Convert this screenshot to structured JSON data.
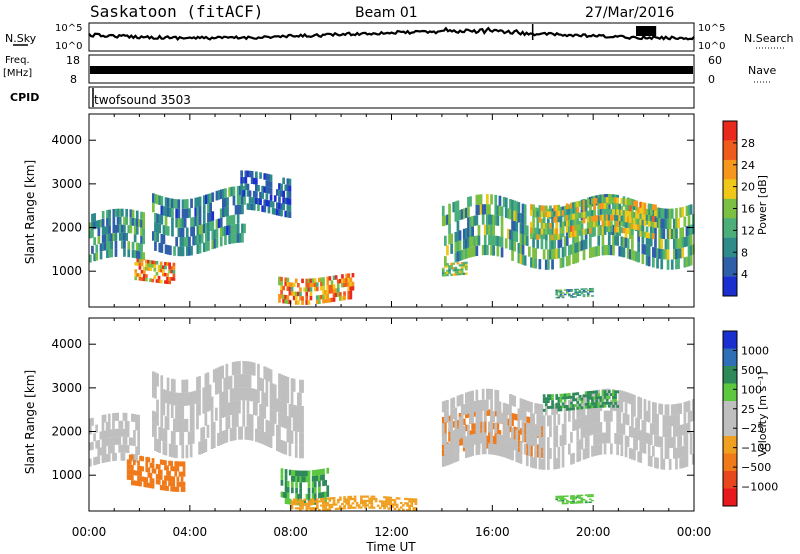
{
  "header": {
    "station": "Saskatoon (fitACF)",
    "beam": "Beam 01",
    "date": "27/Mar/2016"
  },
  "sky_panel": {
    "left_label": "N.Sky",
    "right_label": "N.Search",
    "ticks_left": [
      "10^5",
      "10^0"
    ],
    "ticks_right": [
      "10^5",
      "10^0"
    ]
  },
  "freq_panel": {
    "left_label_top": "Freq.",
    "left_label_unit": "[MHz]",
    "ticks_left": [
      "18",
      "8"
    ],
    "ticks_right": [
      "60",
      "0"
    ],
    "right_label": "Nave"
  },
  "cpid_panel": {
    "label": "CPID",
    "program": "twofsound 3503"
  },
  "power_panel": {
    "ylabel": "Slant Range [km]",
    "colorbar_label": "Power [dB]",
    "colorbar_ticks": [
      "28",
      "24",
      "20",
      "16",
      "12",
      "8",
      "4"
    ],
    "colorbar_colors": [
      "#e8291c",
      "#f05a1a",
      "#f7961c",
      "#f0c81a",
      "#7bc043",
      "#4caf7a",
      "#2f8a8a",
      "#2e5fa8",
      "#1b2fd0"
    ]
  },
  "velocity_panel": {
    "ylabel": "Slant Range [km]",
    "colorbar_label": "Velocity [m s⁻¹]",
    "colorbar_ticks": [
      "1000",
      "500",
      "100",
      "25",
      "−25",
      "−100",
      "−500",
      "−1000"
    ],
    "colorbar_colors": [
      "#1b2fd0",
      "#2e6fb8",
      "#2f8a5a",
      "#5cc840",
      "#bfbfbf",
      "#bfbfbf",
      "#f0a020",
      "#f07a1a",
      "#e8461c",
      "#e8191c"
    ]
  },
  "x_axis": {
    "label": "Time UT",
    "ticks": [
      "00:00",
      "04:00",
      "08:00",
      "12:00",
      "16:00",
      "20:00",
      "00:00"
    ]
  },
  "chart_data": [
    {
      "type": "heatmap",
      "name": "power",
      "xlabel": "Time UT",
      "ylabel": "Slant Range [km]",
      "xlim": [
        0,
        24
      ],
      "ylim": [
        180,
        4600
      ],
      "yticks": [
        1000,
        2000,
        3000,
        4000
      ],
      "colorbar_range": [
        0,
        32
      ],
      "features": [
        {
          "t0": 0.0,
          "t1": 2.2,
          "r0": 1200,
          "r1": 2300,
          "level": 10
        },
        {
          "t0": 1.8,
          "t1": 3.4,
          "r0": 750,
          "r1": 1250,
          "level": 24
        },
        {
          "t0": 2.5,
          "t1": 6.2,
          "r0": 1500,
          "r1": 2800,
          "level": 9
        },
        {
          "t0": 6.0,
          "t1": 8.0,
          "r0": 2300,
          "r1": 3200,
          "level": 6
        },
        {
          "t0": 7.5,
          "t1": 10.5,
          "r0": 300,
          "r1": 900,
          "level": 22
        },
        {
          "t0": 14.0,
          "t1": 15.0,
          "r0": 900,
          "r1": 1200,
          "level": 16
        },
        {
          "t0": 14.0,
          "t1": 24.0,
          "r0": 1200,
          "r1": 2600,
          "level": 12
        },
        {
          "t0": 17.5,
          "t1": 22.5,
          "r0": 1800,
          "r1": 2600,
          "level": 17
        },
        {
          "t0": 18.5,
          "t1": 20.0,
          "r0": 400,
          "r1": 600,
          "level": 10
        }
      ]
    },
    {
      "type": "heatmap",
      "name": "velocity",
      "xlabel": "Time UT",
      "ylabel": "Slant Range [km]",
      "xlim": [
        0,
        24
      ],
      "ylim": [
        180,
        4600
      ],
      "yticks": [
        1000,
        2000,
        3000,
        4000
      ],
      "colorbar_range": [
        -1000,
        1000
      ],
      "features": [
        {
          "t0": 0.0,
          "t1": 2.0,
          "r0": 1200,
          "r1": 2300,
          "level": 0
        },
        {
          "t0": 1.5,
          "t1": 3.8,
          "r0": 700,
          "r1": 1400,
          "level": -300
        },
        {
          "t0": 2.5,
          "t1": 8.5,
          "r0": 1600,
          "r1": 3400,
          "level": 0
        },
        {
          "t0": 7.6,
          "t1": 9.5,
          "r0": 400,
          "r1": 1200,
          "level": 100
        },
        {
          "t0": 8.0,
          "t1": 13.0,
          "r0": 200,
          "r1": 500,
          "level": -60
        },
        {
          "t0": 14.0,
          "t1": 18.0,
          "r0": 1500,
          "r1": 2400,
          "level": -300
        },
        {
          "t0": 14.0,
          "t1": 24.0,
          "r0": 1300,
          "r1": 2800,
          "level": 0
        },
        {
          "t0": 18.0,
          "t1": 21.0,
          "r0": 2500,
          "r1": 2900,
          "level": 120
        },
        {
          "t0": 18.5,
          "t1": 20.0,
          "r0": 350,
          "r1": 550,
          "level": 80
        }
      ]
    }
  ]
}
